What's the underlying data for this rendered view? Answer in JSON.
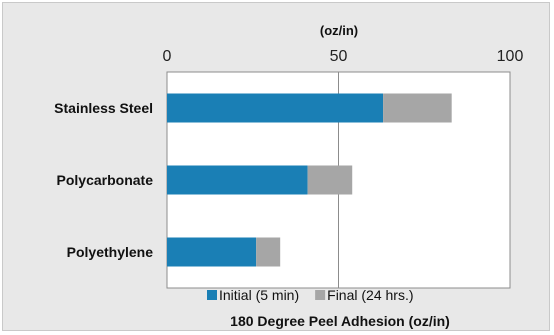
{
  "chart_data": {
    "type": "bar",
    "orientation": "horizontal",
    "stacked": true,
    "title": "180 Degree Peel Adhesion (oz/in)",
    "axis_unit_label": "(oz/in)",
    "x_axis_position": "top",
    "xlim": [
      0,
      100
    ],
    "x_ticks": [
      0,
      50,
      100
    ],
    "grid": true,
    "legend_position": "bottom",
    "categories": [
      "Stainless Steel",
      "Polycarbonate",
      "Polyethylene"
    ],
    "series": [
      {
        "name": "Initial (5 min)",
        "values": [
          63,
          41,
          26
        ],
        "color": "#1a7fb5"
      },
      {
        "name": "Final (24 hrs.)",
        "values": [
          20,
          13,
          7
        ],
        "color": "#a6a6a6"
      }
    ]
  }
}
